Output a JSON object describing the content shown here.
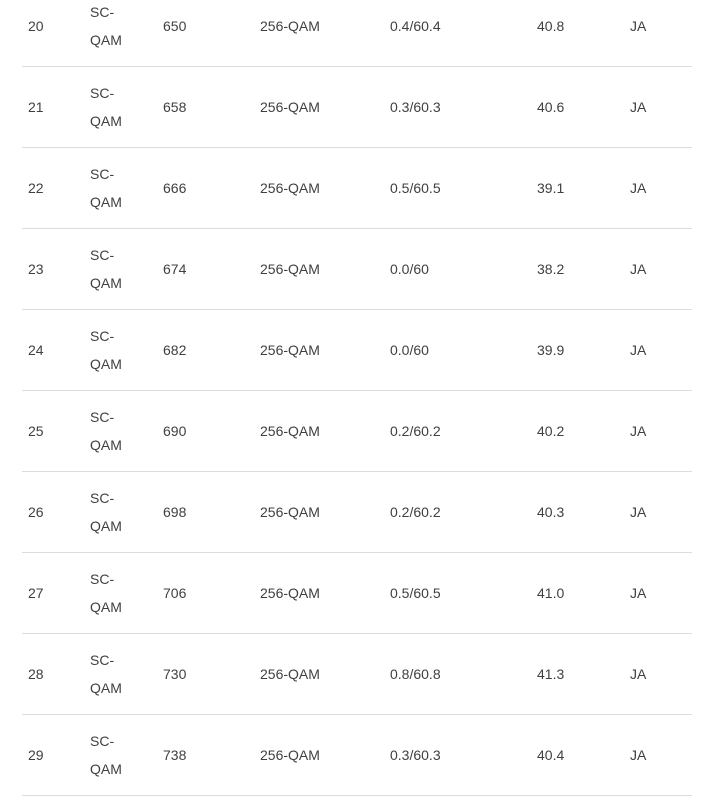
{
  "colors": {
    "background": "#ffffff",
    "text": "#404040",
    "divider": "#dcdcdc"
  },
  "table": {
    "rows": [
      {
        "channel": "20",
        "type": "SC-QAM",
        "frequency": "650",
        "modulation": "256-QAM",
        "power": "0.4/60.4",
        "snr": "40.8",
        "locked": "JA"
      },
      {
        "channel": "21",
        "type": "SC-QAM",
        "frequency": "658",
        "modulation": "256-QAM",
        "power": "0.3/60.3",
        "snr": "40.6",
        "locked": "JA"
      },
      {
        "channel": "22",
        "type": "SC-QAM",
        "frequency": "666",
        "modulation": "256-QAM",
        "power": "0.5/60.5",
        "snr": "39.1",
        "locked": "JA"
      },
      {
        "channel": "23",
        "type": "SC-QAM",
        "frequency": "674",
        "modulation": "256-QAM",
        "power": "0.0/60",
        "snr": "38.2",
        "locked": "JA"
      },
      {
        "channel": "24",
        "type": "SC-QAM",
        "frequency": "682",
        "modulation": "256-QAM",
        "power": "0.0/60",
        "snr": "39.9",
        "locked": "JA"
      },
      {
        "channel": "25",
        "type": "SC-QAM",
        "frequency": "690",
        "modulation": "256-QAM",
        "power": "0.2/60.2",
        "snr": "40.2",
        "locked": "JA"
      },
      {
        "channel": "26",
        "type": "SC-QAM",
        "frequency": "698",
        "modulation": "256-QAM",
        "power": "0.2/60.2",
        "snr": "40.3",
        "locked": "JA"
      },
      {
        "channel": "27",
        "type": "SC-QAM",
        "frequency": "706",
        "modulation": "256-QAM",
        "power": "0.5/60.5",
        "snr": "41.0",
        "locked": "JA"
      },
      {
        "channel": "28",
        "type": "SC-QAM",
        "frequency": "730",
        "modulation": "256-QAM",
        "power": "0.8/60.8",
        "snr": "41.3",
        "locked": "JA"
      },
      {
        "channel": "29",
        "type": "SC-QAM",
        "frequency": "738",
        "modulation": "256-QAM",
        "power": "0.3/60.3",
        "snr": "40.4",
        "locked": "JA"
      }
    ]
  }
}
